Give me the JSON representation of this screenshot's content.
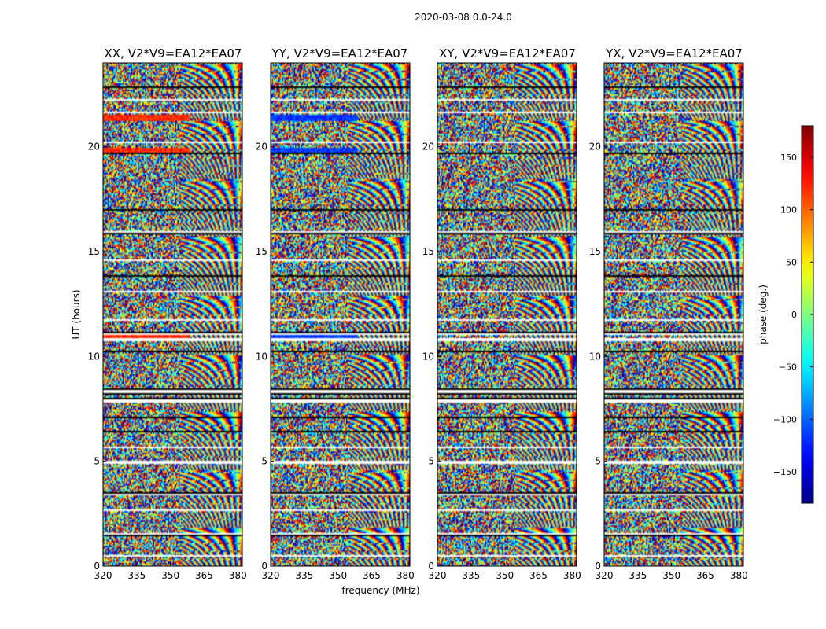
{
  "chart_data": {
    "type": "heatmap",
    "title": "2020-03-08 0.0-24.0",
    "xlabel": "frequency (MHz)",
    "ylabel": "UT (hours)",
    "xlim": [
      320,
      382
    ],
    "ylim": [
      0,
      24
    ],
    "xticks": [
      "320",
      "335",
      "350",
      "365",
      "380"
    ],
    "yticks": [
      "0",
      "5",
      "10",
      "15",
      "20"
    ],
    "panels": [
      {
        "title": "XX, V2*V9=EA12*EA07",
        "bias_phase": 120
      },
      {
        "title": "YY, V2*V9=EA12*EA07",
        "bias_phase": -115
      },
      {
        "title": "XY, V2*V9=EA12*EA07",
        "bias_phase": null
      },
      {
        "title": "YX, V2*V9=EA12*EA07",
        "bias_phase": null
      }
    ],
    "colorbar": {
      "label": "phase (deg.)",
      "range": [
        -180,
        180
      ],
      "ticks": [
        "150",
        "100",
        "50",
        "0",
        "−50",
        "−100",
        "−150"
      ],
      "colormap": "jet"
    },
    "flagged_bands_hours": [
      [
        0.45,
        0.5
      ],
      [
        1.45,
        1.6
      ],
      [
        2.0,
        2.05
      ],
      [
        2.65,
        2.7
      ],
      [
        3.4,
        3.5
      ],
      [
        4.1,
        4.15
      ],
      [
        4.85,
        5.05
      ],
      [
        5.6,
        5.7
      ],
      [
        6.35,
        6.45
      ],
      [
        7.05,
        7.1
      ],
      [
        7.8,
        8.0
      ],
      [
        8.15,
        8.45
      ],
      [
        9.5,
        9.55
      ],
      [
        10.2,
        10.25
      ],
      [
        10.75,
        10.85
      ],
      [
        11.0,
        11.15
      ],
      [
        11.7,
        11.75
      ],
      [
        12.35,
        12.4
      ],
      [
        13.05,
        13.1
      ],
      [
        13.8,
        13.85
      ],
      [
        14.55,
        14.6
      ],
      [
        15.2,
        15.25
      ],
      [
        15.8,
        15.95
      ],
      [
        16.4,
        16.45
      ],
      [
        16.95,
        17.0
      ],
      [
        17.6,
        17.65
      ],
      [
        18.2,
        18.25
      ],
      [
        19.1,
        19.15
      ],
      [
        19.65,
        19.7
      ],
      [
        20.2,
        20.25
      ],
      [
        20.9,
        20.95
      ],
      [
        21.6,
        21.7
      ],
      [
        22.2,
        22.25
      ],
      [
        22.8,
        22.85
      ],
      [
        23.3,
        23.35
      ]
    ],
    "bias_bands_hours": [
      [
        21.2,
        21.5
      ],
      [
        19.75,
        19.95
      ],
      [
        10.8,
        11.05
      ]
    ]
  }
}
